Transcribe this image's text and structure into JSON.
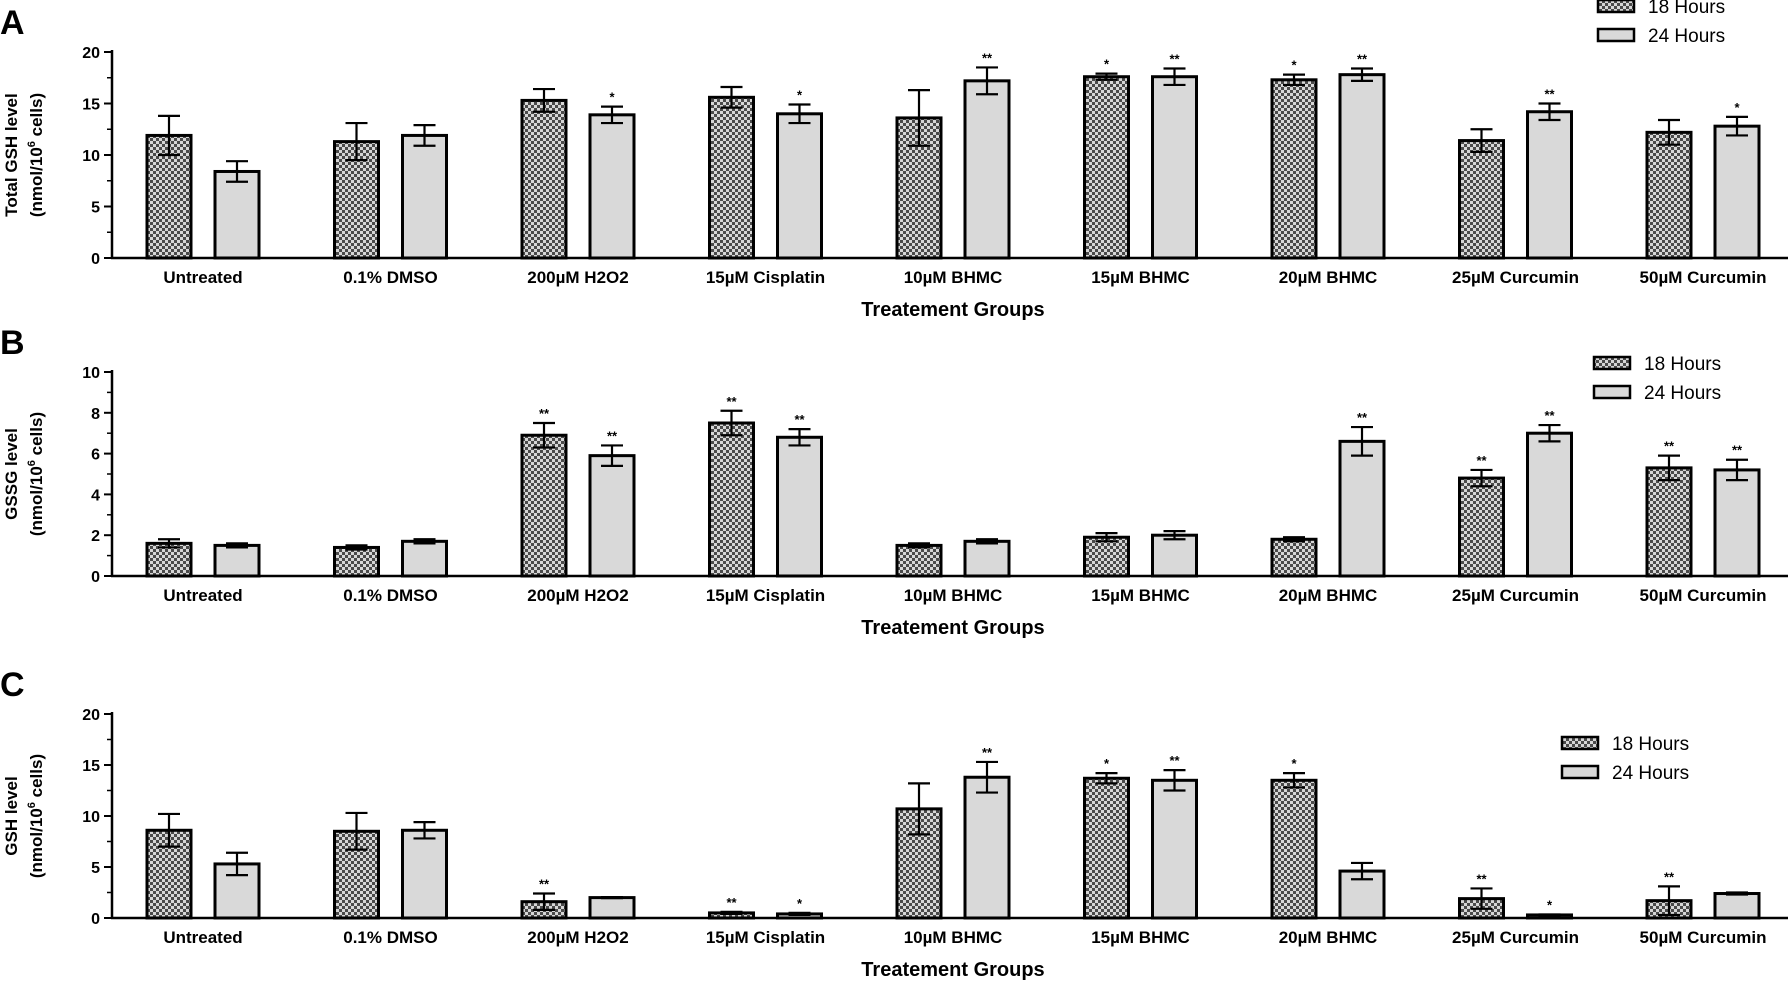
{
  "chart_data": [
    {
      "type": "bar",
      "panel_letter": "A",
      "ylabel_line1": "Total GSH level",
      "ylabel_line2_prefix": "(nmol/10",
      "ylabel_line2_sup": "6",
      "ylabel_line2_suffix": " cells)",
      "xlabel": "Treatement Groups",
      "ylim": [
        0,
        20
      ],
      "yticks": [
        "0",
        "5",
        "10",
        "15",
        "20"
      ],
      "legend_position": "top-right",
      "categories": [
        "Untreated",
        "0.1% DMSO",
        "200µM H2O2",
        "15µM Cisplatin",
        "10µM BHMC",
        "15µM BHMC",
        "20µM BHMC",
        "25µM Curcumin",
        "50µM Curcumin"
      ],
      "series": [
        {
          "name": "18 Hours",
          "pattern": "checker",
          "values": [
            11.9,
            11.3,
            15.3,
            15.6,
            13.6,
            17.6,
            17.3,
            11.4,
            12.2
          ],
          "errors": [
            1.9,
            1.8,
            1.1,
            1.0,
            2.7,
            0.3,
            0.5,
            1.1,
            1.2
          ],
          "sig": [
            "",
            "",
            "",
            "",
            "",
            "*",
            "*",
            "",
            ""
          ]
        },
        {
          "name": "24 Hours",
          "pattern": "solid",
          "values": [
            8.4,
            11.9,
            13.9,
            14.0,
            17.2,
            17.6,
            17.8,
            14.2,
            12.8
          ],
          "errors": [
            1.0,
            1.0,
            0.8,
            0.9,
            1.3,
            0.8,
            0.6,
            0.8,
            0.9
          ],
          "sig": [
            "",
            "",
            "*",
            "*",
            "**",
            "**",
            "**",
            "**",
            "*"
          ]
        }
      ]
    },
    {
      "type": "bar",
      "panel_letter": "B",
      "ylabel_line1": "GSSG level",
      "ylabel_line2_prefix": "(nmol/10",
      "ylabel_line2_sup": "6",
      "ylabel_line2_suffix": " cells)",
      "xlabel": "Treatement Groups",
      "ylim": [
        0,
        10
      ],
      "yticks": [
        "0",
        "2",
        "4",
        "6",
        "8",
        "10"
      ],
      "legend_position": "top-right",
      "categories": [
        "Untreated",
        "0.1% DMSO",
        "200µM H2O2",
        "15µM Cisplatin",
        "10µM BHMC",
        "15µM BHMC",
        "20µM BHMC",
        "25µM Curcumin",
        "50µM Curcumin"
      ],
      "series": [
        {
          "name": "18 Hours",
          "pattern": "checker",
          "values": [
            1.6,
            1.4,
            6.9,
            7.5,
            1.5,
            1.9,
            1.8,
            4.8,
            5.3
          ],
          "errors": [
            0.2,
            0.1,
            0.6,
            0.6,
            0.1,
            0.2,
            0.1,
            0.4,
            0.6
          ],
          "sig": [
            "",
            "",
            "**",
            "**",
            "",
            "",
            "",
            "**",
            "**"
          ]
        },
        {
          "name": "24 Hours",
          "pattern": "solid",
          "values": [
            1.5,
            1.7,
            5.9,
            6.8,
            1.7,
            2.0,
            6.6,
            7.0,
            5.2
          ],
          "errors": [
            0.1,
            0.1,
            0.5,
            0.4,
            0.1,
            0.2,
            0.7,
            0.4,
            0.5
          ],
          "sig": [
            "",
            "",
            "**",
            "**",
            "",
            "",
            "**",
            "**",
            "**"
          ]
        }
      ]
    },
    {
      "type": "bar",
      "panel_letter": "C",
      "ylabel_line1": "GSH level",
      "ylabel_line2_prefix": "(nmol/10",
      "ylabel_line2_sup": "6",
      "ylabel_line2_suffix": " cells)",
      "xlabel": "Treatement Groups",
      "ylim": [
        0,
        20
      ],
      "yticks": [
        "0",
        "5",
        "10",
        "15",
        "20"
      ],
      "legend_position": "right",
      "categories": [
        "Untreated",
        "0.1% DMSO",
        "200µM H2O2",
        "15µM Cisplatin",
        "10µM BHMC",
        "15µM BHMC",
        "20µM BHMC",
        "25µM Curcumin",
        "50µM Curcumin"
      ],
      "series": [
        {
          "name": "18 Hours",
          "pattern": "checker",
          "values": [
            8.6,
            8.5,
            1.6,
            0.5,
            10.7,
            13.7,
            13.5,
            1.9,
            1.7
          ],
          "errors": [
            1.6,
            1.8,
            0.8,
            0.1,
            2.5,
            0.5,
            0.7,
            1.0,
            1.4
          ],
          "sig": [
            "",
            "",
            "**",
            "**",
            "",
            "*",
            "*",
            "**",
            "**"
          ]
        },
        {
          "name": "24 Hours",
          "pattern": "solid",
          "values": [
            5.3,
            8.6,
            2.0,
            0.4,
            13.8,
            13.5,
            4.6,
            0.3,
            2.4
          ],
          "errors": [
            1.1,
            0.8,
            0.05,
            0.1,
            1.5,
            1.0,
            0.8,
            0.05,
            0.1
          ],
          "sig": [
            "",
            "",
            "",
            "*",
            "**",
            "**",
            "",
            "*",
            ""
          ]
        }
      ]
    }
  ],
  "colors": {
    "bar_fill": "#d9d9d9",
    "checker_dark": "#4a4a4a",
    "checker_light": "#d6d6d6",
    "axis": "#000000",
    "background": "#ffffff"
  }
}
